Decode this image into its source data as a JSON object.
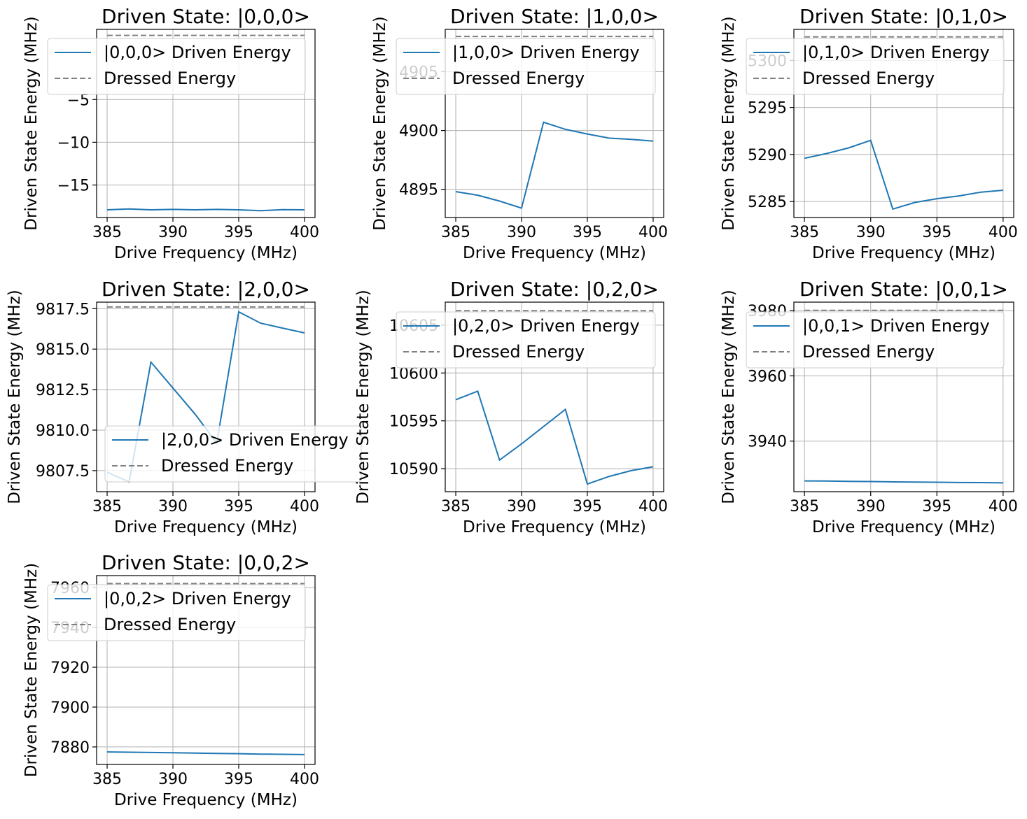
{
  "chart_data": [
    {
      "type": "line",
      "title": "Driven State: |0,0,0>",
      "xlabel": "Drive Frequency (MHz)",
      "ylabel": "Driven State Energy (MHz)",
      "xlim": [
        384.2,
        400.8
      ],
      "ylim": [
        -18.8,
        3.2
      ],
      "xticks": [
        385,
        390,
        395,
        400
      ],
      "yticks": [
        -15,
        -10,
        -5
      ],
      "ytick_labels": [
        "−15",
        "−10",
        "−5"
      ],
      "grid": true,
      "legend_position": "upper-left",
      "x": [
        385,
        386.67,
        388.33,
        390,
        391.67,
        393.33,
        395,
        396.67,
        398.33,
        400
      ],
      "series": [
        {
          "name": "|0,0,0> Driven Energy",
          "color": "#1f77b4",
          "style": "solid",
          "values": [
            -17.9,
            -17.8,
            -17.9,
            -17.85,
            -17.9,
            -17.85,
            -17.9,
            -18.0,
            -17.88,
            -17.9
          ]
        },
        {
          "name": "Dressed Energy",
          "color": "#808080",
          "style": "dashed",
          "values": [
            2.5,
            2.5,
            2.5,
            2.5,
            2.5,
            2.5,
            2.5,
            2.5,
            2.5,
            2.5
          ]
        }
      ]
    },
    {
      "type": "line",
      "title": "Driven State: |1,0,0>",
      "xlabel": "Drive Frequency (MHz)",
      "ylabel": "Driven State Energy (MHz)",
      "xlim": [
        384.2,
        400.8
      ],
      "ylim": [
        4892.6,
        4908.6
      ],
      "xticks": [
        385,
        390,
        395,
        400
      ],
      "yticks": [
        4895,
        4900,
        4905
      ],
      "ytick_labels": [
        "4895",
        "4900",
        "4905"
      ],
      "grid": true,
      "legend_position": "upper-left",
      "x": [
        385,
        386.67,
        388.33,
        390,
        391.67,
        393.33,
        395,
        396.67,
        398.33,
        400
      ],
      "series": [
        {
          "name": "|1,0,0> Driven Energy",
          "color": "#1f77b4",
          "style": "solid",
          "values": [
            4894.8,
            4894.5,
            4894.0,
            4893.4,
            4900.7,
            4900.1,
            4899.7,
            4899.35,
            4899.25,
            4899.1
          ]
        },
        {
          "name": "Dressed Energy",
          "color": "#808080",
          "style": "dashed",
          "values": [
            4908.0,
            4908.0,
            4908.0,
            4908.0,
            4908.0,
            4908.0,
            4908.0,
            4908.0,
            4908.0,
            4908.0
          ]
        }
      ]
    },
    {
      "type": "line",
      "title": "Driven State: |0,1,0>",
      "xlabel": "Drive Frequency (MHz)",
      "ylabel": "Driven State Energy (MHz)",
      "xlim": [
        384.2,
        400.8
      ],
      "ylim": [
        5283.3,
        5303.3
      ],
      "xticks": [
        385,
        390,
        395,
        400
      ],
      "yticks": [
        5285,
        5290,
        5295,
        5300
      ],
      "ytick_labels": [
        "5285",
        "5290",
        "5295",
        "5300"
      ],
      "grid": true,
      "legend_position": "upper-left",
      "x": [
        385,
        386.67,
        388.33,
        390,
        391.67,
        393.33,
        395,
        396.67,
        398.33,
        400
      ],
      "series": [
        {
          "name": "|0,1,0> Driven Energy",
          "color": "#1f77b4",
          "style": "solid",
          "values": [
            5289.6,
            5290.1,
            5290.7,
            5291.5,
            5284.2,
            5284.9,
            5285.3,
            5285.6,
            5286.0,
            5286.2
          ]
        },
        {
          "name": "Dressed Energy",
          "color": "#808080",
          "style": "dashed",
          "values": [
            5302.5,
            5302.5,
            5302.5,
            5302.5,
            5302.5,
            5302.5,
            5302.5,
            5302.5,
            5302.5,
            5302.5
          ]
        }
      ]
    },
    {
      "type": "line",
      "title": "Driven State: |2,0,0>",
      "xlabel": "Drive Frequency (MHz)",
      "ylabel": "Driven State Energy (MHz)",
      "xlim": [
        384.2,
        400.8
      ],
      "ylim": [
        9806.2,
        9817.9
      ],
      "xticks": [
        385,
        390,
        395,
        400
      ],
      "yticks": [
        9807.5,
        9810.0,
        9812.5,
        9815.0,
        9817.5
      ],
      "ytick_labels": [
        "9807.5",
        "9810.0",
        "9812.5",
        "9815.0",
        "9817.5"
      ],
      "grid": true,
      "legend_position": "lower-right",
      "x": [
        385,
        386.67,
        388.33,
        390,
        391.67,
        393.33,
        395,
        396.67,
        398.33,
        400
      ],
      "series": [
        {
          "name": "|2,0,0> Driven Energy",
          "color": "#1f77b4",
          "style": "solid",
          "values": [
            9807.4,
            9806.8,
            9814.2,
            9812.6,
            9811.0,
            9809.2,
            9817.3,
            9816.6,
            9816.3,
            9816.0
          ]
        },
        {
          "name": "Dressed Energy",
          "color": "#808080",
          "style": "dashed",
          "values": [
            9817.6,
            9817.6,
            9817.6,
            9817.6,
            9817.6,
            9817.6,
            9817.6,
            9817.6,
            9817.6,
            9817.6
          ]
        }
      ]
    },
    {
      "type": "line",
      "title": "Driven State: |0,2,0>",
      "xlabel": "Drive Frequency (MHz)",
      "ylabel": "Driven State Energy (MHz)",
      "xlim": [
        384.2,
        400.8
      ],
      "ylim": [
        10587.6,
        10607.4
      ],
      "xticks": [
        385,
        390,
        395,
        400
      ],
      "yticks": [
        10590,
        10595,
        10600,
        10605
      ],
      "ytick_labels": [
        "10590",
        "10595",
        "10600",
        "10605"
      ],
      "grid": true,
      "legend_position": "upper-left",
      "x": [
        385,
        386.67,
        388.33,
        390,
        391.67,
        393.33,
        395,
        396.67,
        398.33,
        400
      ],
      "series": [
        {
          "name": "|0,2,0> Driven Energy",
          "color": "#1f77b4",
          "style": "solid",
          "values": [
            10597.2,
            10598.1,
            10590.9,
            10592.6,
            10594.4,
            10596.2,
            10588.4,
            10589.2,
            10589.8,
            10590.2
          ]
        },
        {
          "name": "Dressed Energy",
          "color": "#808080",
          "style": "dashed",
          "values": [
            10606.5,
            10606.5,
            10606.5,
            10606.5,
            10606.5,
            10606.5,
            10606.5,
            10606.5,
            10606.5,
            10606.5
          ]
        }
      ]
    },
    {
      "type": "line",
      "title": "Driven State: |0,0,1>",
      "xlabel": "Drive Frequency (MHz)",
      "ylabel": "Driven State Energy (MHz)",
      "xlim": [
        384.2,
        400.8
      ],
      "ylim": [
        3924.5,
        3982.6
      ],
      "xticks": [
        385,
        390,
        395,
        400
      ],
      "yticks": [
        3940,
        3960,
        3980
      ],
      "ytick_labels": [
        "3940",
        "3960",
        "3980"
      ],
      "grid": true,
      "legend_position": "upper-left",
      "x": [
        385,
        386.67,
        388.33,
        390,
        391.67,
        393.33,
        395,
        396.67,
        398.33,
        400
      ],
      "series": [
        {
          "name": "|0,0,1> Driven Energy",
          "color": "#1f77b4",
          "style": "solid",
          "values": [
            3927.8,
            3927.75,
            3927.65,
            3927.6,
            3927.5,
            3927.45,
            3927.4,
            3927.3,
            3927.28,
            3927.2
          ]
        },
        {
          "name": "Dressed Energy",
          "color": "#808080",
          "style": "dashed",
          "values": [
            3980.1,
            3980.1,
            3980.1,
            3980.1,
            3980.1,
            3980.1,
            3980.1,
            3980.1,
            3980.1,
            3980.1
          ]
        }
      ]
    },
    {
      "type": "line",
      "title": "Driven State: |0,0,2>",
      "xlabel": "Drive Frequency (MHz)",
      "ylabel": "Driven State Energy (MHz)",
      "xlim": [
        384.2,
        400.8
      ],
      "ylim": [
        7871.2,
        7966.0
      ],
      "xticks": [
        385,
        390,
        395,
        400
      ],
      "yticks": [
        7880,
        7900,
        7920,
        7940,
        7960
      ],
      "ytick_labels": [
        "7880",
        "7900",
        "7920",
        "7940",
        "7960"
      ],
      "grid": true,
      "legend_position": "upper-left",
      "x": [
        385,
        386.67,
        388.33,
        390,
        391.67,
        393.33,
        395,
        396.67,
        398.33,
        400
      ],
      "series": [
        {
          "name": "|0,0,2> Driven Energy",
          "color": "#1f77b4",
          "style": "solid",
          "values": [
            7877.5,
            7877.35,
            7877.2,
            7877.05,
            7876.9,
            7876.75,
            7876.6,
            7876.4,
            7876.3,
            7876.15
          ]
        },
        {
          "name": "Dressed Energy",
          "color": "#808080",
          "style": "dashed",
          "values": [
            7962.0,
            7962.0,
            7962.0,
            7962.0,
            7962.0,
            7962.0,
            7962.0,
            7962.0,
            7962.0,
            7962.0
          ]
        }
      ]
    }
  ]
}
